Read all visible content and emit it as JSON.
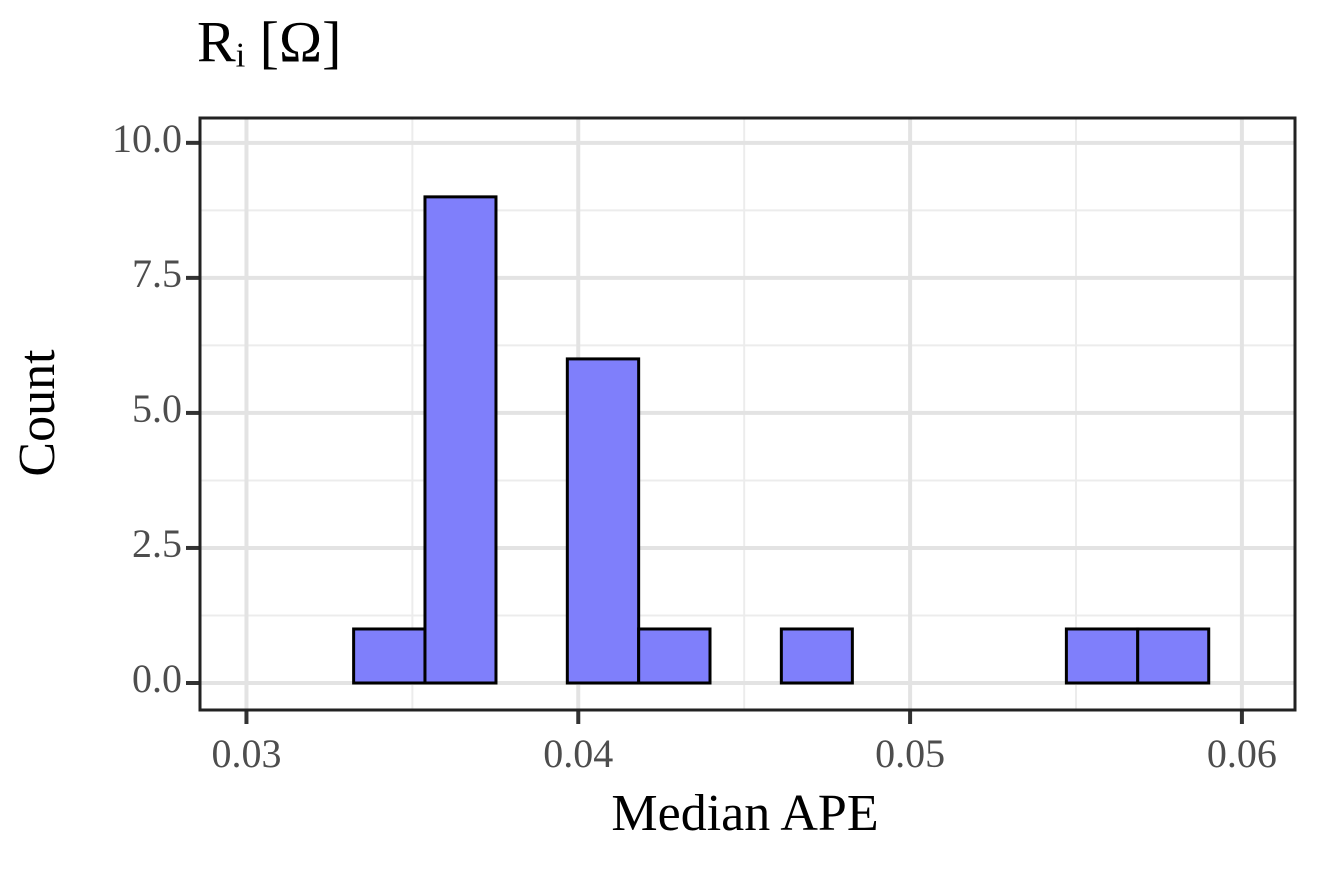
{
  "chart_data": {
    "type": "histogram",
    "title": "Rᵢ [Ω]",
    "x_label": "Median APE",
    "y_label": "Count",
    "bins": [
      0.03108,
      0.03323,
      0.03538,
      0.03752,
      0.03967,
      0.04182,
      0.04397,
      0.04612,
      0.04826,
      0.05041,
      0.05256,
      0.05471,
      0.05686,
      0.059
    ],
    "counts": [
      0,
      1,
      9,
      0,
      6,
      1,
      0,
      1,
      0,
      0,
      0,
      1,
      1
    ],
    "color": "#7f7ffb",
    "edge_color": "#000000",
    "xlim": [
      0.0286,
      0.0616
    ],
    "ylim": [
      -0.5,
      10.46
    ],
    "xticks": [
      0.03,
      0.04,
      0.05,
      0.06
    ],
    "yticks": [
      {
        "value": 0,
        "label": "0.0"
      },
      2.5,
      {
        "value": 5,
        "label": "5.0"
      },
      7.5,
      {
        "value": 10,
        "label": "10.0"
      }
    ],
    "grid": true
  }
}
